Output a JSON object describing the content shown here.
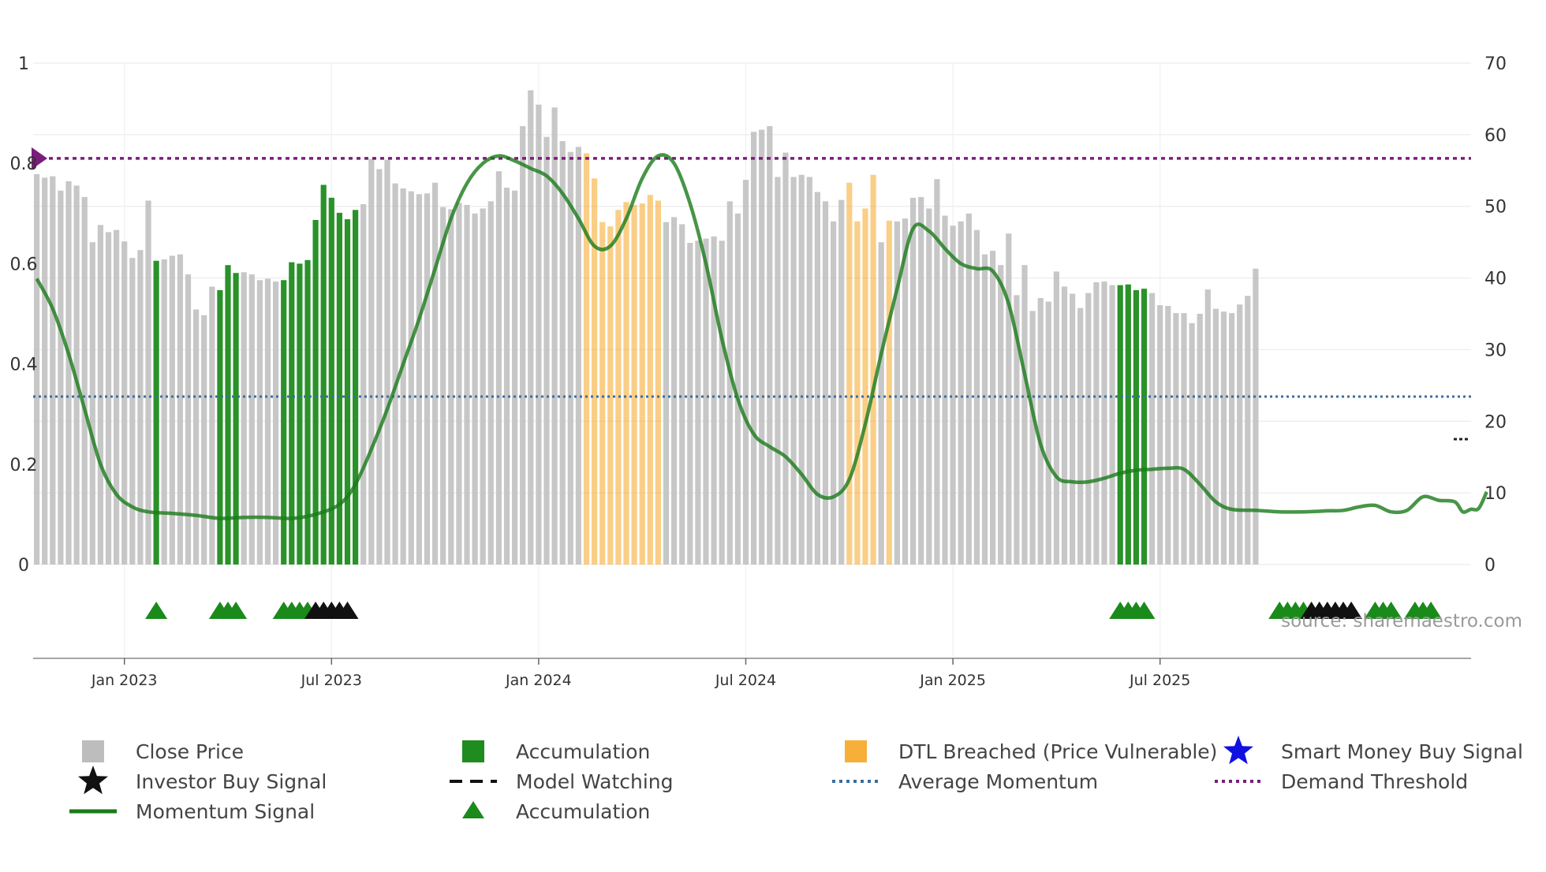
{
  "chart_data": {
    "type": "bar",
    "title": "",
    "source": "source: sharemaestro.com",
    "left_axis": {
      "range": [
        0,
        1
      ],
      "tick_values": [
        0,
        0.2,
        0.4,
        0.6,
        0.8,
        1
      ],
      "tick_labels": [
        "0",
        "0.2",
        "0.4",
        "0.6",
        "0.8",
        "1"
      ]
    },
    "right_axis": {
      "range": [
        0,
        70
      ],
      "tick_values": [
        0,
        10,
        20,
        30,
        40,
        50,
        60,
        70
      ],
      "tick_labels": [
        "0",
        "10",
        "20",
        "30",
        "40",
        "50",
        "60",
        "70"
      ]
    },
    "x_axis": {
      "ticks": [
        {
          "label": "Jan 2023",
          "week": 11
        },
        {
          "label": "Jul 2023",
          "week": 37
        },
        {
          "label": "Jan 2024",
          "week": 63
        },
        {
          "label": "Jul 2024",
          "week": 89
        },
        {
          "label": "Jan 2025",
          "week": 115
        },
        {
          "label": "Jul 2025",
          "week": 141
        }
      ]
    },
    "series_close_price": {
      "name": "Close Price",
      "unit": "price (right axis)",
      "values": [
        54.5,
        54,
        54.2,
        52.2,
        53.5,
        52.9,
        51.3,
        45,
        47.4,
        46.4,
        46.7,
        45.1,
        42.8,
        43.9,
        50.8,
        42.4,
        42.6,
        43.1,
        43.3,
        40.5,
        35.6,
        34.8,
        38.8,
        38.3,
        41.8,
        40.7,
        40.8,
        40.5,
        39.7,
        39.9,
        39.5,
        39.7,
        42.2,
        42,
        42.5,
        48.1,
        53,
        51.2,
        49.1,
        48.2,
        49.5,
        50.3,
        56.6,
        55.2,
        56.5,
        53.2,
        52.5,
        52.1,
        51.7,
        51.8,
        53.3,
        49.9,
        49.6,
        50.5,
        50.2,
        49,
        49.7,
        50.7,
        54.9,
        52.6,
        52.2,
        61.2,
        66.2,
        64.2,
        59.7,
        63.8,
        59.1,
        57.6,
        58.3,
        57.4,
        53.9,
        47.8,
        47.2,
        49.5,
        50.6,
        50.2,
        50.4,
        51.6,
        50.8,
        47.8,
        48.5,
        47.5,
        44.9,
        45.2,
        45.5,
        45.8,
        45.2,
        50.7,
        49,
        53.7,
        60.4,
        60.7,
        61.2,
        54.1,
        57.5,
        54.1,
        54.4,
        54.1,
        52,
        50.7,
        47.9,
        50.9,
        53.3,
        47.9,
        49.7,
        54.4,
        45,
        48,
        47.9,
        48.3,
        51.2,
        51.3,
        49.7,
        53.8,
        48.7,
        47.3,
        47.9,
        49,
        46.7,
        43.3,
        43.8,
        41.8,
        46.2,
        37.6,
        41.8,
        35.4,
        37.2,
        36.7,
        40.9,
        38.8,
        37.8,
        35.8,
        37.9,
        39.4,
        39.5,
        39,
        39,
        39.1,
        38.3,
        38.5,
        37.9,
        36.2,
        36.1,
        35.1,
        35.1,
        33.7,
        35,
        38.4,
        35.7,
        35.3,
        35.1,
        36.3,
        37.5,
        41.3
      ],
      "color": "#bdbdbd"
    },
    "bar_colors": {
      "accumulation": "#1e8c1e",
      "dtl_breached": "#f5a623",
      "neutral": "#bdbdbd"
    },
    "accumulation_weeks": [
      15,
      23,
      24,
      25,
      31,
      32,
      33,
      34,
      35,
      36,
      37,
      38,
      39,
      40,
      136,
      137,
      138,
      139,
      156,
      157,
      158,
      159,
      160,
      161,
      162,
      163,
      164,
      165,
      166,
      168,
      169,
      170,
      173,
      174,
      175
    ],
    "dtl_weeks": [
      69,
      70,
      71,
      72,
      73,
      74,
      75,
      76,
      77,
      78,
      102,
      103,
      104,
      105,
      107
    ],
    "momentum_signal": {
      "name": "Momentum Signal",
      "unit": "left axis",
      "points": [
        [
          0,
          0.57
        ],
        [
          2,
          0.51
        ],
        [
          4,
          0.42
        ],
        [
          6,
          0.31
        ],
        [
          8,
          0.2
        ],
        [
          10,
          0.14
        ],
        [
          12,
          0.115
        ],
        [
          14,
          0.105
        ],
        [
          17,
          0.102
        ],
        [
          20,
          0.098
        ],
        [
          23,
          0.092
        ],
        [
          26,
          0.094
        ],
        [
          29,
          0.094
        ],
        [
          32,
          0.092
        ],
        [
          35,
          0.1
        ],
        [
          38,
          0.12
        ],
        [
          40,
          0.16
        ],
        [
          42,
          0.23
        ],
        [
          44,
          0.31
        ],
        [
          46,
          0.4
        ],
        [
          48,
          0.49
        ],
        [
          50,
          0.59
        ],
        [
          52,
          0.69
        ],
        [
          54,
          0.76
        ],
        [
          56,
          0.8
        ],
        [
          58,
          0.815
        ],
        [
          60,
          0.805
        ],
        [
          62,
          0.79
        ],
        [
          64,
          0.775
        ],
        [
          66,
          0.74
        ],
        [
          68,
          0.69
        ],
        [
          70,
          0.635
        ],
        [
          72,
          0.635
        ],
        [
          74,
          0.69
        ],
        [
          76,
          0.77
        ],
        [
          78,
          0.815
        ],
        [
          80,
          0.8
        ],
        [
          82,
          0.72
        ],
        [
          84,
          0.6
        ],
        [
          86,
          0.45
        ],
        [
          88,
          0.33
        ],
        [
          90,
          0.26
        ],
        [
          92,
          0.235
        ],
        [
          94,
          0.215
        ],
        [
          96,
          0.18
        ],
        [
          98,
          0.14
        ],
        [
          100,
          0.135
        ],
        [
          102,
          0.17
        ],
        [
          104,
          0.28
        ],
        [
          106,
          0.42
        ],
        [
          108,
          0.55
        ],
        [
          110,
          0.67
        ],
        [
          112,
          0.665
        ],
        [
          114,
          0.63
        ],
        [
          116,
          0.6
        ],
        [
          118,
          0.59
        ],
        [
          120,
          0.585
        ],
        [
          122,
          0.52
        ],
        [
          124,
          0.38
        ],
        [
          126,
          0.24
        ],
        [
          128,
          0.175
        ],
        [
          130,
          0.165
        ],
        [
          132,
          0.165
        ],
        [
          134,
          0.172
        ],
        [
          136,
          0.182
        ],
        [
          138,
          0.188
        ],
        [
          140,
          0.19
        ],
        [
          142,
          0.192
        ],
        [
          144,
          0.19
        ],
        [
          146,
          0.16
        ],
        [
          148,
          0.125
        ],
        [
          150,
          0.11
        ],
        [
          153,
          0.108
        ],
        [
          156,
          0.105
        ],
        [
          159,
          0.105
        ],
        [
          162,
          0.107
        ],
        [
          164,
          0.108
        ],
        [
          166,
          0.115
        ],
        [
          168,
          0.118
        ],
        [
          170,
          0.105
        ],
        [
          172,
          0.108
        ],
        [
          174,
          0.135
        ],
        [
          176,
          0.128
        ],
        [
          178,
          0.125
        ],
        [
          179,
          0.105
        ],
        [
          180,
          0.11
        ],
        [
          181,
          0.112
        ],
        [
          182,
          0.145
        ]
      ],
      "color": "#1a7a1a"
    },
    "demand_threshold": {
      "name": "Demand Threshold",
      "value": 0.81,
      "color": "#7a1e7a"
    },
    "average_momentum": {
      "name": "Average Momentum",
      "value": 0.335,
      "color": "#3a6fa0"
    },
    "model_watching_value": 0.25,
    "accumulation_triangles": [
      15,
      23,
      24,
      25,
      31,
      32,
      33,
      34,
      136,
      137,
      138,
      139,
      156,
      157,
      158,
      159,
      168,
      169,
      170,
      173,
      174,
      175
    ],
    "investor_buy_signals": [
      35,
      36,
      37,
      38,
      39,
      160,
      161,
      162,
      163,
      164,
      165
    ],
    "legend": [
      {
        "label": "Close Price",
        "symbol": "square",
        "color": "#bdbdbd"
      },
      {
        "label": "Accumulation",
        "symbol": "square",
        "color": "#1e8c1e"
      },
      {
        "label": "DTL Breached (Price Vulnerable)",
        "symbol": "square",
        "color": "#f5a623"
      },
      {
        "label": "Smart Money Buy Signal",
        "symbol": "star",
        "color": "#1010e0"
      },
      {
        "label": "Investor Buy Signal",
        "symbol": "star",
        "color": "#111111"
      },
      {
        "label": "Model Watching",
        "symbol": "dash",
        "color": "#111111"
      },
      {
        "label": "Average Momentum",
        "symbol": "dot",
        "color": "#3a6fa0"
      },
      {
        "label": "Demand Threshold",
        "symbol": "dot",
        "color": "#7a1e7a"
      },
      {
        "label": "Momentum Signal",
        "symbol": "line",
        "color": "#1a7a1a"
      },
      {
        "label": "Accumulation",
        "symbol": "triangle",
        "color": "#1a8a1a"
      }
    ]
  }
}
